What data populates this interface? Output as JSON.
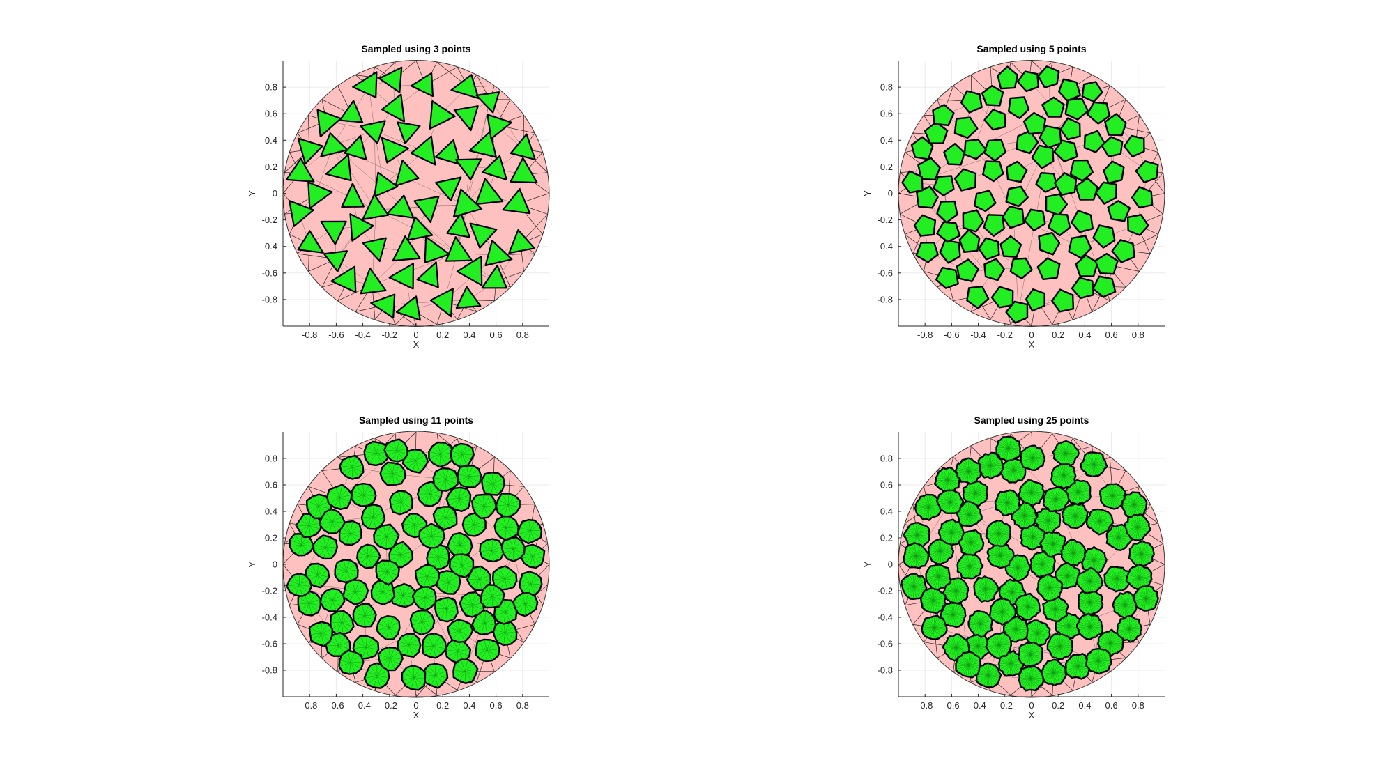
{
  "figure": {
    "background": "#ffffff",
    "panel_count": 4
  },
  "chart_data": [
    {
      "type": "scatter",
      "title": "Sampled using 3 points",
      "xlabel": "X",
      "ylabel": "Y",
      "xlim": [
        -1,
        1
      ],
      "ylim": [
        -1,
        1
      ],
      "xticks": [
        -0.8,
        -0.6,
        -0.4,
        -0.2,
        0,
        0.2,
        0.4,
        0.6,
        0.8
      ],
      "yticks": [
        -0.8,
        -0.6,
        -0.4,
        -0.2,
        0,
        0.2,
        0.4,
        0.6,
        0.8
      ],
      "grid": true,
      "domain_shape": "unit disk",
      "domain_radius": 1,
      "cell_vertices": 3,
      "cell_count": 75,
      "background_fill": "#ffc0c0",
      "cell_fill": "#22ee22",
      "cell_edge": "#000000"
    },
    {
      "type": "scatter",
      "title": "Sampled using 5 points",
      "xlabel": "X",
      "ylabel": "Y",
      "xlim": [
        -1,
        1
      ],
      "ylim": [
        -1,
        1
      ],
      "xticks": [
        -0.8,
        -0.6,
        -0.4,
        -0.2,
        0,
        0.2,
        0.4,
        0.6,
        0.8
      ],
      "yticks": [
        -0.8,
        -0.6,
        -0.4,
        -0.2,
        0,
        0.2,
        0.4,
        0.6,
        0.8
      ],
      "grid": true,
      "domain_shape": "unit disk",
      "domain_radius": 1,
      "cell_vertices": 5,
      "cell_count": 105,
      "background_fill": "#ffc0c0",
      "cell_fill": "#22ee22",
      "cell_edge": "#000000"
    },
    {
      "type": "scatter",
      "title": "Sampled using 11 points",
      "xlabel": "X",
      "ylabel": "Y",
      "xlim": [
        -1,
        1
      ],
      "ylim": [
        -1,
        1
      ],
      "xticks": [
        -0.8,
        -0.6,
        -0.4,
        -0.2,
        0,
        0.2,
        0.4,
        0.6,
        0.8
      ],
      "yticks": [
        -0.8,
        -0.6,
        -0.4,
        -0.2,
        0,
        0.2,
        0.4,
        0.6,
        0.8
      ],
      "grid": true,
      "domain_shape": "unit disk",
      "domain_radius": 1,
      "cell_vertices": 11,
      "cell_count": 100,
      "background_fill": "#ffc0c0",
      "cell_fill": "#22ee22",
      "cell_edge": "#000000"
    },
    {
      "type": "scatter",
      "title": "Sampled using 25 points",
      "xlabel": "X",
      "ylabel": "Y",
      "xlim": [
        -1,
        1
      ],
      "ylim": [
        -1,
        1
      ],
      "xticks": [
        -0.8,
        -0.6,
        -0.4,
        -0.2,
        0,
        0.2,
        0.4,
        0.6,
        0.8
      ],
      "yticks": [
        -0.8,
        -0.6,
        -0.4,
        -0.2,
        0,
        0.2,
        0.4,
        0.6,
        0.8
      ],
      "grid": true,
      "domain_shape": "unit disk",
      "domain_radius": 1,
      "cell_vertices": 25,
      "cell_count": 95,
      "background_fill": "#ffc0c0",
      "cell_fill": "#22ee22",
      "cell_edge": "#000000"
    }
  ]
}
